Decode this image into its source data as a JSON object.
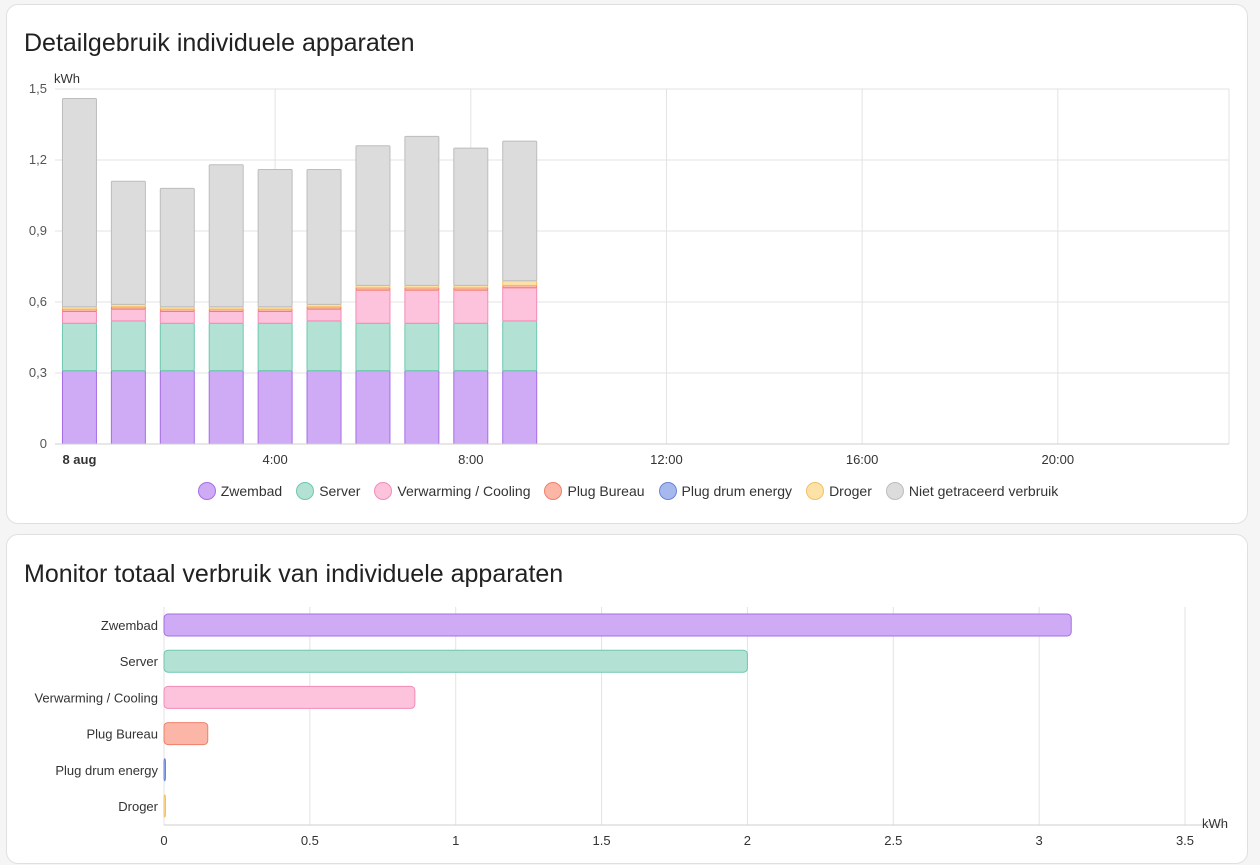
{
  "card1": {
    "title": "Detailgebruik individuele apparaten",
    "legend": [
      {
        "name": "Zwembad",
        "color": "#cfaaf5",
        "border": "#a66ee8"
      },
      {
        "name": "Server",
        "color": "#b3e2d5",
        "border": "#6fc7ae"
      },
      {
        "name": "Verwarming / Cooling",
        "color": "#fdc3dc",
        "border": "#f28cb8"
      },
      {
        "name": "Plug Bureau",
        "color": "#fbb6a8",
        "border": "#ef8069"
      },
      {
        "name": "Plug drum energy",
        "color": "#a6b9ee",
        "border": "#6c84d8"
      },
      {
        "name": "Droger",
        "color": "#fde2a8",
        "border": "#f2c063"
      },
      {
        "name": "Niet getraceerd verbruik",
        "color": "#dcdcdc",
        "border": "#bdbdbd"
      }
    ]
  },
  "chart_data": [
    {
      "type": "bar",
      "stacked": true,
      "ylabel": "kWh",
      "ylim": [
        0,
        1.5
      ],
      "y_ticks": [
        "0",
        "0,3",
        "0,6",
        "0,9",
        "1,2",
        "1,5"
      ],
      "x_ticks": [
        "8 aug",
        "4:00",
        "8:00",
        "12:00",
        "16:00",
        "20:00"
      ],
      "categories": [
        "00:00",
        "01:00",
        "02:00",
        "03:00",
        "04:00",
        "05:00",
        "06:00",
        "07:00",
        "08:00",
        "09:00"
      ],
      "series": [
        {
          "name": "Zwembad",
          "values": [
            0.31,
            0.31,
            0.31,
            0.31,
            0.31,
            0.31,
            0.31,
            0.31,
            0.31,
            0.31
          ]
        },
        {
          "name": "Server",
          "values": [
            0.2,
            0.21,
            0.2,
            0.2,
            0.2,
            0.21,
            0.2,
            0.2,
            0.2,
            0.21
          ]
        },
        {
          "name": "Verwarming / Cooling",
          "values": [
            0.05,
            0.05,
            0.05,
            0.05,
            0.05,
            0.05,
            0.14,
            0.14,
            0.14,
            0.14
          ]
        },
        {
          "name": "Plug Bureau",
          "values": [
            0.01,
            0.01,
            0.01,
            0.01,
            0.01,
            0.01,
            0.01,
            0.01,
            0.01,
            0.01
          ]
        },
        {
          "name": "Plug drum energy",
          "values": [
            0,
            0,
            0,
            0,
            0,
            0,
            0,
            0,
            0,
            0
          ]
        },
        {
          "name": "Droger",
          "values": [
            0.01,
            0.01,
            0.01,
            0.01,
            0.01,
            0.01,
            0.01,
            0.01,
            0.01,
            0.02
          ]
        },
        {
          "name": "Niet getraceerd verbruik",
          "values": [
            0.88,
            0.52,
            0.5,
            0.6,
            0.58,
            0.57,
            0.59,
            0.63,
            0.58,
            0.59
          ]
        }
      ],
      "totals": [
        1.46,
        1.11,
        1.08,
        1.18,
        1.16,
        1.16,
        1.26,
        1.3,
        1.25,
        1.29
      ]
    },
    {
      "type": "bar",
      "orientation": "horizontal",
      "xlabel": "kWh",
      "xlim": [
        0,
        3.5
      ],
      "x_ticks": [
        "0",
        "0.5",
        "1",
        "1.5",
        "2",
        "2.5",
        "3",
        "3.5"
      ],
      "categories": [
        "Zwembad",
        "Server",
        "Verwarming / Cooling",
        "Plug Bureau",
        "Plug drum energy",
        "Droger"
      ],
      "values": [
        3.11,
        2.0,
        0.86,
        0.15,
        0.005,
        0.005
      ]
    }
  ],
  "card2": {
    "title": "Monitor totaal verbruik van individuele apparaten"
  }
}
